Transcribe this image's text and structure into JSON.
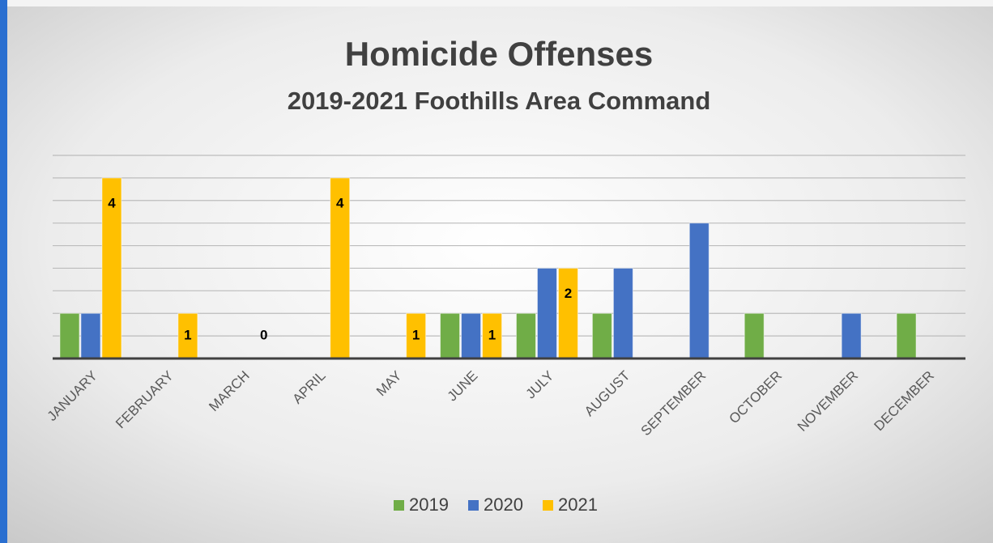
{
  "chart_data": {
    "type": "bar",
    "title": "Homicide Offenses",
    "subtitle": "2019-2021 Foothills Area Command",
    "categories": [
      "JANUARY",
      "FEBRUARY",
      "MARCH",
      "APRIL",
      "MAY",
      "JUNE",
      "JULY",
      "AUGUST",
      "SEPTEMBER",
      "OCTOBER",
      "NOVEMBER",
      "DECEMBER"
    ],
    "series": [
      {
        "name": "2019",
        "color": "#70ad47",
        "values": [
          1,
          0,
          0,
          0,
          0,
          1,
          1,
          1,
          0,
          1,
          0,
          1
        ]
      },
      {
        "name": "2020",
        "color": "#4472c4",
        "values": [
          1,
          0,
          0,
          0,
          0,
          1,
          2,
          2,
          3,
          0,
          1,
          0
        ]
      },
      {
        "name": "2021",
        "color": "#ffc000",
        "values": [
          4,
          1,
          0,
          4,
          1,
          1,
          2,
          null,
          null,
          null,
          null,
          null
        ],
        "data_labels": true
      }
    ],
    "ylim": [
      0,
      4.5
    ],
    "yticks": [
      0,
      0.5,
      1,
      1.5,
      2,
      2.5,
      3,
      3.5,
      4,
      4.5
    ],
    "grid": true,
    "legend": "bottom"
  }
}
